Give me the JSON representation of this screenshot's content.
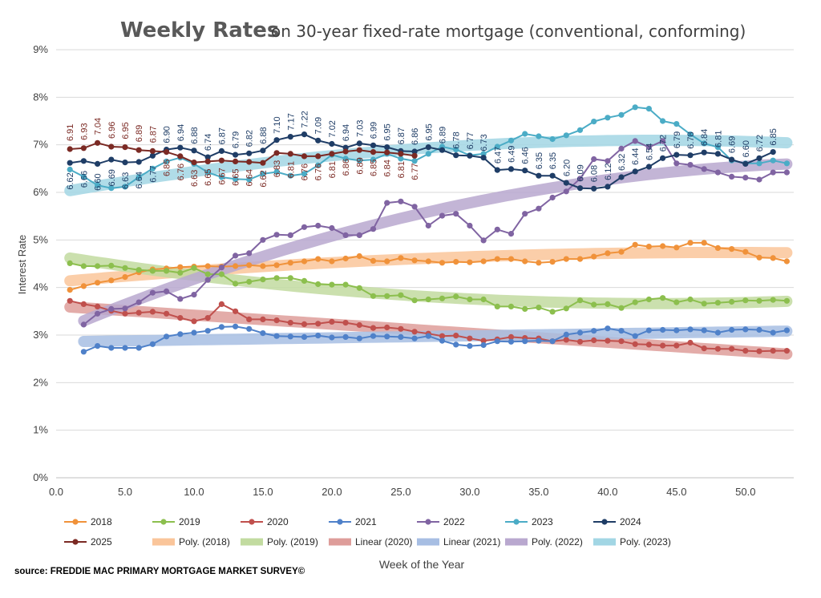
{
  "chart_data": {
    "type": "line",
    "title": "Weekly Rates",
    "subtitle": "on 30-year fixed-rate mortgage (conventional, conforming)",
    "xlabel": "Week of the Year",
    "ylabel": "Interest Rate",
    "xlim": [
      0,
      53.5
    ],
    "ylim": [
      0,
      9
    ],
    "x_ticks": [
      "0.0",
      "5.0",
      "10.0",
      "15.0",
      "20.0",
      "25.0",
      "30.0",
      "35.0",
      "40.0",
      "45.0",
      "50.0"
    ],
    "y_ticks": [
      "0%",
      "1%",
      "2%",
      "3%",
      "4%",
      "5%",
      "6%",
      "7%",
      "8%",
      "9%"
    ],
    "grid": "horizontal",
    "legend_position": "bottom",
    "source": "source: FREDDIE MAC PRIMARY MORTGAGE MARKET SURVEY©",
    "series": [
      {
        "name": "2018",
        "color": "#f0923a",
        "values": [
          3.95,
          4.03,
          4.1,
          4.15,
          4.22,
          4.32,
          4.38,
          4.4,
          4.43,
          4.44,
          4.45,
          4.44,
          4.45,
          4.47,
          4.45,
          4.47,
          4.52,
          4.55,
          4.6,
          4.55,
          4.61,
          4.66,
          4.56,
          4.55,
          4.62,
          4.57,
          4.55,
          4.52,
          4.54,
          4.53,
          4.55,
          4.6,
          4.6,
          4.55,
          4.52,
          4.54,
          4.6,
          4.6,
          4.65,
          4.72,
          4.75,
          4.9,
          4.86,
          4.87,
          4.84,
          4.94,
          4.94,
          4.83,
          4.81,
          4.75,
          4.63,
          4.62,
          4.55
        ]
      },
      {
        "name": "2019",
        "color": "#8cbf4e",
        "values": [
          4.51,
          4.45,
          4.45,
          4.46,
          4.41,
          4.37,
          4.35,
          4.35,
          4.31,
          4.41,
          4.28,
          4.28,
          4.08,
          4.12,
          4.17,
          4.2,
          4.2,
          4.14,
          4.07,
          4.06,
          4.06,
          3.99,
          3.82,
          3.82,
          3.84,
          3.73,
          3.75,
          3.77,
          3.81,
          3.75,
          3.75,
          3.6,
          3.6,
          3.55,
          3.58,
          3.49,
          3.56,
          3.73,
          3.64,
          3.65,
          3.57,
          3.69,
          3.75,
          3.78,
          3.69,
          3.75,
          3.66,
          3.68,
          3.7,
          3.73,
          3.72,
          3.74,
          3.72
        ]
      },
      {
        "name": "2020",
        "color": "#c0504d",
        "values": [
          3.72,
          3.65,
          3.6,
          3.51,
          3.45,
          3.47,
          3.49,
          3.45,
          3.36,
          3.29,
          3.36,
          3.65,
          3.5,
          3.33,
          3.33,
          3.31,
          3.26,
          3.23,
          3.24,
          3.28,
          3.26,
          3.21,
          3.15,
          3.16,
          3.13,
          3.07,
          3.03,
          2.98,
          2.99,
          2.93,
          2.88,
          2.91,
          2.96,
          2.94,
          2.93,
          2.87,
          2.9,
          2.86,
          2.89,
          2.88,
          2.87,
          2.81,
          2.8,
          2.78,
          2.78,
          2.84,
          2.72,
          2.71,
          2.71,
          2.67,
          2.66,
          2.67,
          2.67
        ]
      },
      {
        "name": "2021",
        "color": "#4f81c9",
        "values": [
          null,
          2.65,
          2.77,
          2.73,
          2.73,
          2.73,
          2.81,
          2.97,
          3.02,
          3.05,
          3.09,
          3.17,
          3.18,
          3.13,
          3.04,
          2.98,
          2.97,
          2.96,
          2.99,
          2.95,
          2.96,
          2.93,
          2.98,
          2.97,
          2.96,
          2.93,
          2.98,
          2.88,
          2.8,
          2.77,
          2.79,
          2.87,
          2.86,
          2.87,
          2.88,
          2.87,
          3.01,
          3.05,
          3.09,
          3.14,
          3.09,
          2.98,
          3.1,
          3.11,
          3.1,
          3.12,
          3.1,
          3.05,
          3.11,
          3.12,
          3.11,
          3.05,
          3.1
        ]
      },
      {
        "name": "2022",
        "color": "#8064a2",
        "values": [
          null,
          3.22,
          3.45,
          3.55,
          3.56,
          3.69,
          3.89,
          3.92,
          3.76,
          3.85,
          4.16,
          4.42,
          4.67,
          4.72,
          5.0,
          5.11,
          5.1,
          5.27,
          5.3,
          5.25,
          5.1,
          5.1,
          5.23,
          5.78,
          5.81,
          5.7,
          5.3,
          5.51,
          5.55,
          5.3,
          4.99,
          5.22,
          5.13,
          5.55,
          5.66,
          5.89,
          6.02,
          6.29,
          6.7,
          6.66,
          6.92,
          7.08,
          6.95,
          7.08,
          6.61,
          6.58,
          6.49,
          6.42,
          6.33,
          6.31,
          6.27,
          6.42,
          6.42
        ]
      },
      {
        "name": "2023",
        "color": "#4bacc6",
        "values": [
          6.48,
          6.33,
          6.15,
          6.09,
          6.12,
          6.32,
          6.5,
          6.65,
          6.73,
          6.6,
          6.42,
          6.32,
          6.28,
          6.27,
          6.39,
          6.43,
          6.35,
          6.39,
          6.57,
          6.79,
          6.71,
          6.67,
          6.69,
          6.81,
          6.71,
          6.66,
          6.81,
          6.96,
          6.9,
          6.78,
          6.81,
          6.96,
          7.09,
          7.23,
          7.18,
          7.12,
          7.2,
          7.31,
          7.49,
          7.57,
          7.63,
          7.79,
          7.76,
          7.5,
          7.44,
          7.22,
          7.03,
          6.95,
          6.67,
          6.61,
          6.61,
          6.67,
          6.61
        ]
      },
      {
        "name": "2024",
        "color": "#1f3d66",
        "values": [
          6.62,
          6.66,
          6.6,
          6.69,
          6.63,
          6.64,
          6.77,
          6.9,
          6.94,
          6.88,
          6.74,
          6.87,
          6.79,
          6.82,
          6.88,
          7.1,
          7.17,
          7.22,
          7.09,
          7.02,
          6.94,
          7.03,
          6.99,
          6.95,
          6.87,
          6.86,
          6.95,
          6.89,
          6.78,
          6.77,
          6.73,
          6.47,
          6.49,
          6.46,
          6.35,
          6.35,
          6.2,
          6.09,
          6.08,
          6.12,
          6.32,
          6.44,
          6.54,
          6.72,
          6.79,
          6.78,
          6.84,
          6.81,
          6.69,
          6.6,
          6.72,
          6.85,
          null
        ]
      },
      {
        "name": "2025",
        "color": "#7b2a24",
        "values": [
          6.91,
          6.93,
          7.04,
          6.96,
          6.95,
          6.89,
          6.87,
          6.85,
          6.76,
          6.63,
          6.65,
          6.67,
          6.65,
          6.64,
          6.62,
          6.83,
          6.81,
          6.76,
          6.76,
          6.81,
          6.86,
          6.89,
          6.85,
          6.84,
          6.81,
          6.77
        ]
      }
    ],
    "trendlines": [
      {
        "name": "Poly. (2018)",
        "color": "#fac59a",
        "type": "poly"
      },
      {
        "name": "Poly. (2019)",
        "color": "#c2dba0",
        "type": "poly"
      },
      {
        "name": "Linear (2020)",
        "color": "#de9d9a",
        "type": "linear"
      },
      {
        "name": "Linear (2021)",
        "color": "#a7bee3",
        "type": "linear"
      },
      {
        "name": "Poly. (2022)",
        "color": "#b9a8cf",
        "type": "poly"
      },
      {
        "name": "Poly. (2023)",
        "color": "#a2d6e4",
        "type": "poly"
      }
    ],
    "legend": [
      "2018",
      "2019",
      "2020",
      "2021",
      "2022",
      "2023",
      "2024",
      "2025",
      "Poly. (2018)",
      "Poly. (2019)",
      "Linear (2020)",
      "Linear (2021)",
      "Poly. (2022)",
      "Poly. (2023)"
    ],
    "labeled_series": [
      "2024",
      "2025"
    ]
  }
}
